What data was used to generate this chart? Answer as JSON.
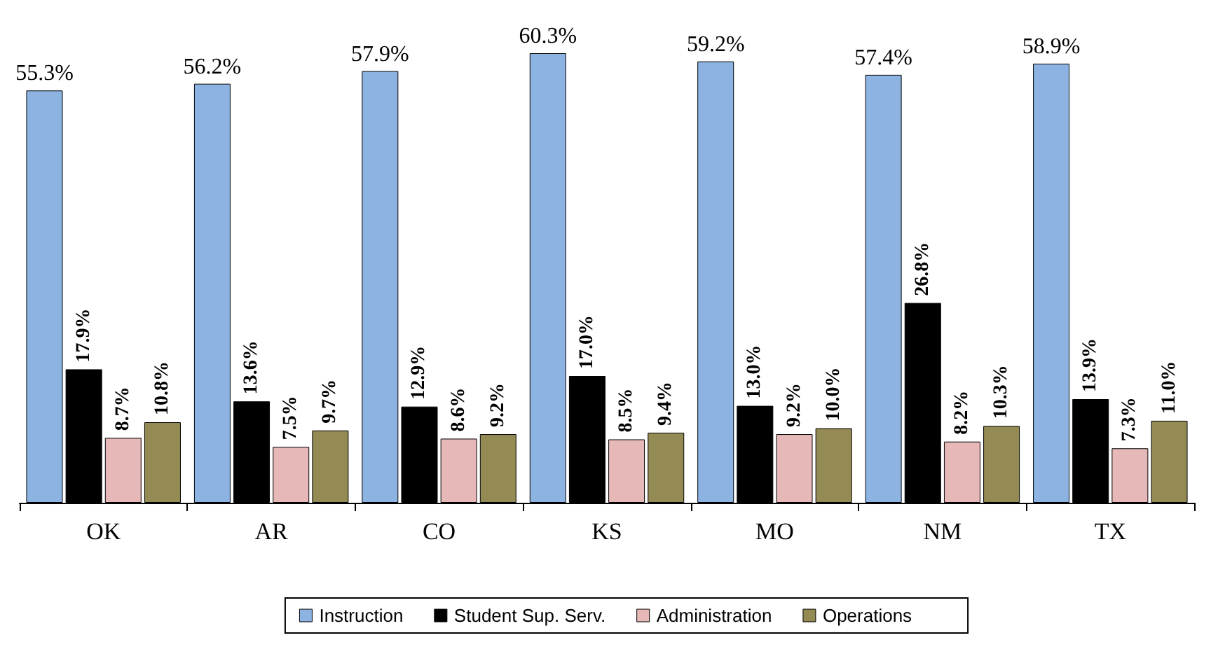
{
  "chart_data": {
    "type": "bar",
    "categories": [
      "OK",
      "AR",
      "CO",
      "KS",
      "MO",
      "NM",
      "TX"
    ],
    "series": [
      {
        "name": "Instruction",
        "color": "#8db3e2",
        "values": [
          55.3,
          56.2,
          57.9,
          60.3,
          59.2,
          57.4,
          58.9
        ],
        "value_labels": [
          "55.3%",
          "56.2%",
          "57.9%",
          "60.3%",
          "59.2%",
          "57.4%",
          "58.9%"
        ]
      },
      {
        "name": "Student Sup. Serv.",
        "color": "#000000",
        "values": [
          17.9,
          13.6,
          12.9,
          17.0,
          13.0,
          26.8,
          13.9
        ],
        "value_labels": [
          "17.9%",
          "13.6%",
          "12.9%",
          "17.0%",
          "13.0%",
          "26.8%",
          "13.9%"
        ]
      },
      {
        "name": "Administration",
        "color": "#e6b9b8",
        "values": [
          8.7,
          7.5,
          8.6,
          8.5,
          9.2,
          8.2,
          7.3
        ],
        "value_labels": [
          "8.7%",
          "7.5%",
          "8.6%",
          "8.5%",
          "9.2%",
          "8.2%",
          "7.3%"
        ]
      },
      {
        "name": "Operations",
        "color": "#948a54",
        "values": [
          10.8,
          9.7,
          9.2,
          9.4,
          10.0,
          10.3,
          11.0
        ],
        "value_labels": [
          "10.8%",
          "9.7%",
          "9.2%",
          "9.4%",
          "10.0%",
          "10.3%",
          "11.0%"
        ]
      }
    ],
    "legend": "bottom",
    "grid": false
  }
}
